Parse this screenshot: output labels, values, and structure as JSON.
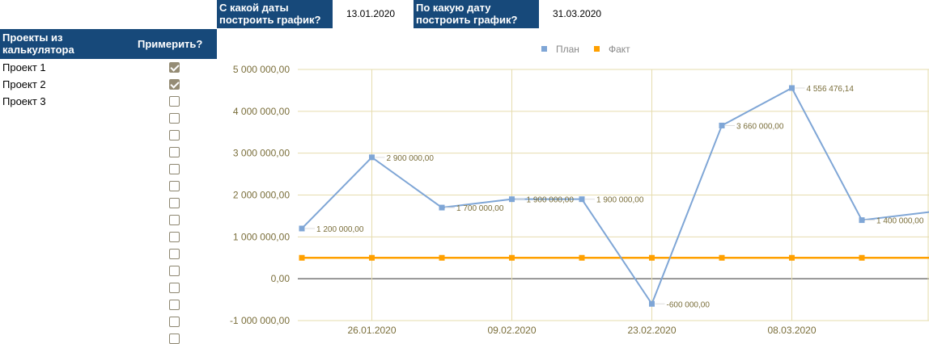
{
  "controls": {
    "from_label": "С какой даты построить график?",
    "from_value": "13.01.2020",
    "to_label": "По какую дату построить график?",
    "to_value": "31.03.2020"
  },
  "projects": {
    "header_name": "Проекты из калькулятора",
    "header_apply": "Примерить?",
    "items": [
      {
        "label": "Проект 1",
        "checked": true
      },
      {
        "label": "Проект 2",
        "checked": true
      },
      {
        "label": "Проект 3",
        "checked": false
      }
    ],
    "extra_checkboxes": 14
  },
  "colors": {
    "header": "#17497a",
    "plan": "#7fa6d6",
    "fact": "#ffa000",
    "grid": "#e6dcae",
    "axis_text": "#7a6e3a"
  },
  "chart_data": {
    "type": "line",
    "legend": [
      "План",
      "Факт"
    ],
    "legend_position": "top",
    "x": [
      "19.01.2020",
      "26.01.2020",
      "02.02.2020",
      "09.02.2020",
      "16.02.2020",
      "23.02.2020",
      "01.03.2020",
      "08.03.2020",
      "15.03.2020",
      "22.03.2020"
    ],
    "x_tick_labels": [
      "26.01.2020",
      "09.02.2020",
      "23.02.2020",
      "08.03.2020"
    ],
    "series": [
      {
        "name": "План",
        "values": [
          1200000,
          2900000,
          1700000,
          1900000,
          1900000,
          -600000,
          3660000,
          4556476.14,
          1400000,
          1600000
        ],
        "labels": [
          "1 200 000,00",
          "2 900 000,00",
          "1 700 000,00",
          "1 900 000,00",
          "1 900 000,00",
          "-600 000,00",
          "3 660 000,00",
          "4 556 476,14",
          "1 400 000,00",
          null
        ]
      },
      {
        "name": "Факт",
        "values": [
          500000,
          500000,
          500000,
          500000,
          500000,
          500000,
          500000,
          500000,
          500000,
          500000
        ]
      }
    ],
    "ylim": [
      -1000000,
      5000000
    ],
    "y_ticks": [
      5000000,
      4000000,
      3000000,
      2000000,
      1000000,
      0,
      -1000000
    ],
    "y_tick_labels": [
      "5 000 000,00",
      "4 000 000,00",
      "3 000 000,00",
      "2 000 000,00",
      "1 000 000,00",
      "0,00",
      "-1 000 000,00"
    ],
    "grid": true
  }
}
